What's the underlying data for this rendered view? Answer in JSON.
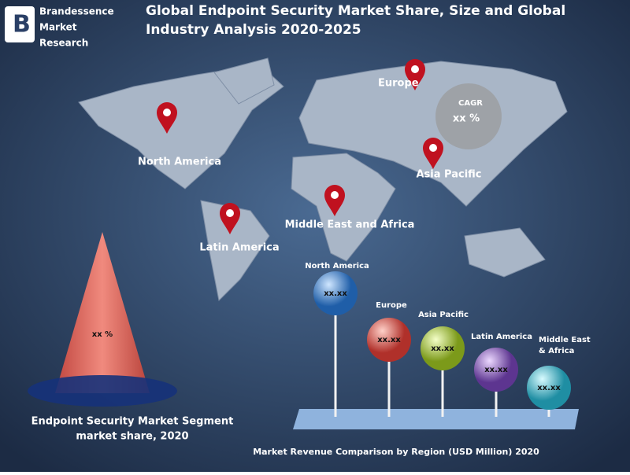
{
  "logo": {
    "lines": [
      "Brandessence",
      "Market",
      "Research"
    ]
  },
  "title": {
    "lines": [
      "Global Endpoint Security Market Share, Size and Global",
      "Industry Analysis 2020-2025"
    ]
  },
  "map": {
    "regions": [
      "Europe",
      "North America",
      "Asia Pacific",
      "Middle East and Africa",
      "Latin America"
    ],
    "cagr": {
      "label": "CAGR",
      "value": "xx %"
    }
  },
  "segment": {
    "value": "xx %",
    "caption": [
      "Endpoint Security  Market Segment",
      "market share, 2020"
    ]
  },
  "revenue": {
    "regions": [
      {
        "name_lines": [
          "North America"
        ],
        "value": "xx.xx"
      },
      {
        "name_lines": [
          "Europe"
        ],
        "value": "xx.xx"
      },
      {
        "name_lines": [
          "Asia Pacific"
        ],
        "value": "xx.xx"
      },
      {
        "name_lines": [
          "Latin America"
        ],
        "value": "xx.xx"
      },
      {
        "name_lines": [
          "Middle East",
          "& Africa"
        ],
        "value": "xx.xx"
      }
    ],
    "caption": "Market Revenue Comparison by Region (USD Million) 2020"
  }
}
